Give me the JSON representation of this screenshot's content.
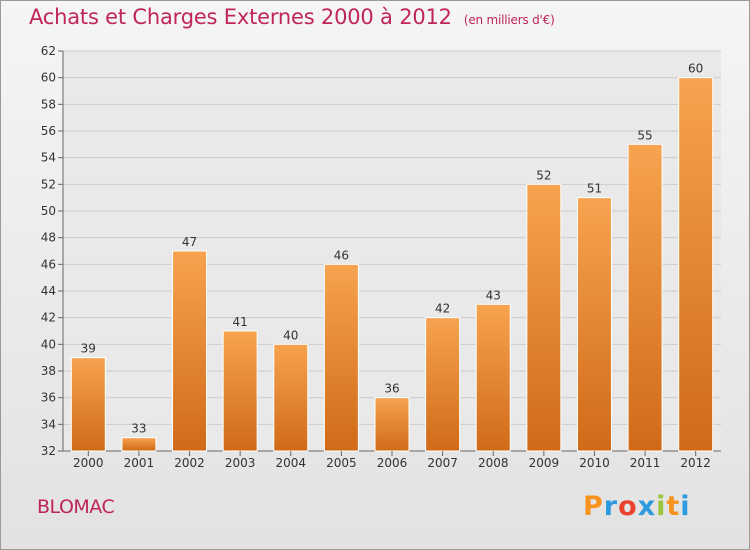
{
  "title": "Achats et Charges Externes 2000 à 2012",
  "unit": "(en milliers d'€)",
  "commune": "BLOMAC",
  "brand": {
    "letters": [
      "P",
      "r",
      "o",
      "x",
      "i",
      "t",
      "i"
    ],
    "colors": [
      "#f7931e",
      "#2e9be0",
      "#e8442f",
      "#2e9be0",
      "#9bc53d",
      "#f7931e",
      "#2e9be0"
    ]
  },
  "colors": {
    "title": "#c0245c",
    "bar_light": "#f7a34f",
    "bar_dark": "#d06a18",
    "grid": "#cccccc"
  },
  "chart_data": {
    "type": "bar",
    "title": "Achats et Charges Externes 2000 à 2012",
    "categories": [
      "2000",
      "2001",
      "2002",
      "2003",
      "2004",
      "2005",
      "2006",
      "2007",
      "2008",
      "2009",
      "2010",
      "2011",
      "2012"
    ],
    "values": [
      39,
      33,
      47,
      41,
      40,
      46,
      36,
      42,
      43,
      52,
      51,
      55,
      60
    ],
    "ylim": [
      32,
      62
    ],
    "yticks": [
      32,
      34,
      36,
      38,
      40,
      42,
      44,
      46,
      48,
      50,
      52,
      54,
      56,
      58,
      60,
      62
    ],
    "grid": true,
    "xlabel": "",
    "ylabel": ""
  }
}
